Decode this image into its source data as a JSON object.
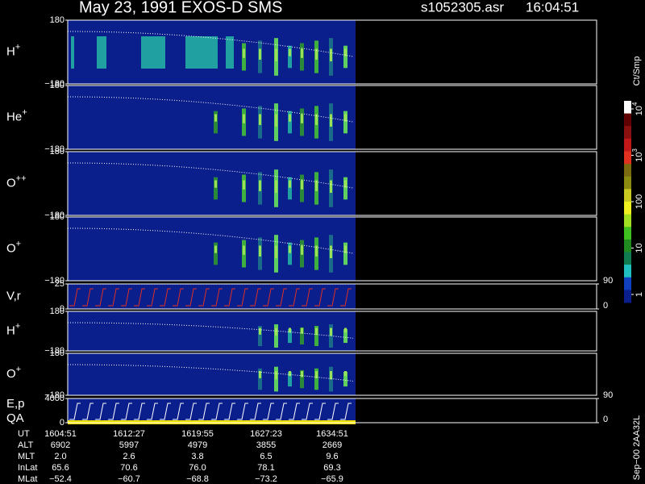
{
  "header": {
    "title": "May 23, 1991   EXOS-D SMS",
    "file": "s1052305.asr",
    "time": "16:04:51"
  },
  "chart_data": [
    {
      "type": "spectrogram",
      "label": "H",
      "label_sup": "+",
      "ylim": [
        -180,
        180
      ],
      "yticks": [
        {
          "value": 180,
          "label": "180"
        },
        {
          "value": -180,
          "label": "−180"
        }
      ]
    },
    {
      "type": "spectrogram",
      "label": "He",
      "label_sup": "+",
      "ylim": [
        -180,
        180
      ],
      "yticks": [
        {
          "value": 180,
          "label": "180"
        },
        {
          "value": -180,
          "label": "−180"
        }
      ]
    },
    {
      "type": "spectrogram",
      "label": "O",
      "label_sup": "++",
      "ylim": [
        -180,
        180
      ],
      "yticks": [
        {
          "value": 180,
          "label": "180"
        },
        {
          "value": -180,
          "label": "−180"
        }
      ]
    },
    {
      "type": "spectrogram",
      "label": "O",
      "label_sup": "+",
      "ylim": [
        -180,
        180
      ],
      "yticks": [
        {
          "value": 180,
          "label": "180"
        },
        {
          "value": -180,
          "label": "−180"
        }
      ]
    },
    {
      "type": "line",
      "label": "V,r",
      "ylim": [
        0,
        25
      ],
      "yticks": [
        25,
        0
      ],
      "y2lim": [
        0,
        90
      ],
      "y2ticks": [
        90,
        0
      ]
    },
    {
      "type": "spectrogram",
      "label": "H",
      "label_sup": "+",
      "ylim": [
        -180,
        180
      ],
      "yticks": [
        {
          "value": 180,
          "label": "180"
        },
        {
          "value": -180,
          "label": "−180"
        }
      ]
    },
    {
      "type": "spectrogram",
      "label": "O",
      "label_sup": "+",
      "ylim": [
        -180,
        180
      ],
      "yticks": [
        {
          "value": 180,
          "label": "180"
        },
        {
          "value": -180,
          "label": "−180"
        }
      ]
    },
    {
      "type": "line",
      "label": "E,p",
      "label2": "QA",
      "ylim": [
        0,
        4000
      ],
      "yticks": [
        4000,
        0
      ],
      "y2lim": [
        0,
        90
      ],
      "y2ticks": [
        90,
        0
      ]
    }
  ],
  "colorbar": {
    "title": "Ct/Smp",
    "ticks": [
      {
        "value": 10000,
        "label": "10",
        "sup": "4"
      },
      {
        "value": 1000,
        "label": "10",
        "sup": "3"
      },
      {
        "value": 100,
        "label": "100"
      },
      {
        "value": 10,
        "label": "10"
      },
      {
        "value": 1,
        "label": "1"
      }
    ]
  },
  "table": {
    "rows": [
      {
        "label": "UT",
        "values": [
          "1604:51",
          "1612:27",
          "1619:55",
          "1627:23",
          "1634:51"
        ]
      },
      {
        "label": "ALT",
        "values": [
          "6902",
          "5997",
          "4979",
          "3855",
          "2669"
        ]
      },
      {
        "label": "MLT",
        "values": [
          "2.0",
          "2.6",
          "3.8",
          "6.5",
          "9.6"
        ]
      },
      {
        "label": "InLat",
        "values": [
          "65.6",
          "70.6",
          "76.0",
          "78.1",
          "69.3"
        ]
      },
      {
        "label": "MLat",
        "values": [
          "−52.4",
          "−60.7",
          "−68.8",
          "−73.2",
          "−65.9"
        ]
      }
    ]
  },
  "footer": "Sep−00 2AA32L"
}
